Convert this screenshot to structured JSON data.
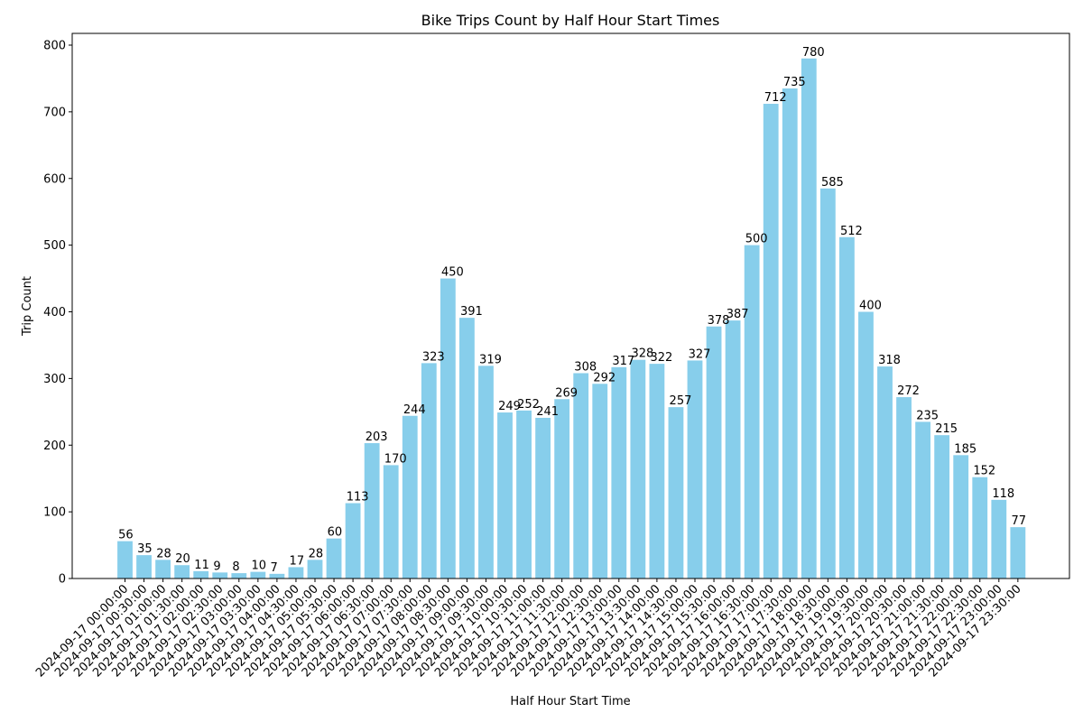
{
  "chart_data": {
    "type": "bar",
    "title": "Bike Trips Count by Half Hour Start Times",
    "xlabel": "Half Hour Start Time",
    "ylabel": "Trip Count",
    "ylim": [
      0,
      820
    ],
    "yticks": [
      0,
      100,
      200,
      300,
      400,
      500,
      600,
      700,
      800
    ],
    "bar_color": "#87ceeb",
    "grid": false,
    "legend": "none",
    "categories": [
      "2024-09-17 00:00:00",
      "2024-09-17 00:30:00",
      "2024-09-17 01:00:00",
      "2024-09-17 01:30:00",
      "2024-09-17 02:00:00",
      "2024-09-17 02:30:00",
      "2024-09-17 03:00:00",
      "2024-09-17 03:30:00",
      "2024-09-17 04:00:00",
      "2024-09-17 04:30:00",
      "2024-09-17 05:00:00",
      "2024-09-17 05:30:00",
      "2024-09-17 06:00:00",
      "2024-09-17 06:30:00",
      "2024-09-17 07:00:00",
      "2024-09-17 07:30:00",
      "2024-09-17 08:00:00",
      "2024-09-17 08:30:00",
      "2024-09-17 09:00:00",
      "2024-09-17 09:30:00",
      "2024-09-17 10:00:00",
      "2024-09-17 10:30:00",
      "2024-09-17 11:00:00",
      "2024-09-17 11:30:00",
      "2024-09-17 12:00:00",
      "2024-09-17 12:30:00",
      "2024-09-17 13:00:00",
      "2024-09-17 13:30:00",
      "2024-09-17 14:00:00",
      "2024-09-17 14:30:00",
      "2024-09-17 15:00:00",
      "2024-09-17 15:30:00",
      "2024-09-17 16:00:00",
      "2024-09-17 16:30:00",
      "2024-09-17 17:00:00",
      "2024-09-17 17:30:00",
      "2024-09-17 18:00:00",
      "2024-09-17 18:30:00",
      "2024-09-17 19:00:00",
      "2024-09-17 19:30:00",
      "2024-09-17 20:00:00",
      "2024-09-17 20:30:00",
      "2024-09-17 21:00:00",
      "2024-09-17 21:30:00",
      "2024-09-17 22:00:00",
      "2024-09-17 22:30:00",
      "2024-09-17 23:00:00",
      "2024-09-17 23:30:00"
    ],
    "values": [
      56,
      35,
      28,
      20,
      11,
      9,
      8,
      10,
      7,
      17,
      28,
      60,
      113,
      203,
      170,
      244,
      323,
      450,
      391,
      319,
      249,
      252,
      241,
      269,
      308,
      292,
      317,
      328,
      322,
      257,
      327,
      378,
      387,
      500,
      712,
      735,
      780,
      585,
      512,
      400,
      318,
      272,
      235,
      215,
      185,
      152,
      118,
      77
    ]
  }
}
